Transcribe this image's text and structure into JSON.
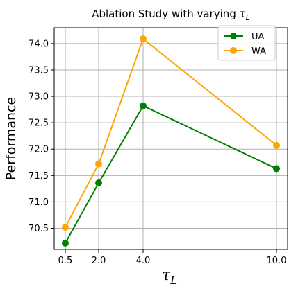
{
  "chart_data": {
    "type": "line",
    "title": "Ablation Study with varying τ",
    "title_subscript": "L",
    "xlabel": "τ",
    "xlabel_subscript": "L",
    "ylabel": "Performance",
    "x": [
      0.5,
      2.0,
      4.0,
      10.0
    ],
    "x_tick_labels": [
      "0.5",
      "2.0",
      "4.0",
      "10.0"
    ],
    "y_ticks": [
      70.5,
      71.0,
      71.5,
      72.0,
      72.5,
      73.0,
      73.5,
      74.0
    ],
    "y_tick_labels": [
      "70.5",
      "71.0",
      "71.5",
      "72.0",
      "72.5",
      "73.0",
      "73.5",
      "74.0"
    ],
    "xlim": [
      0.0,
      10.5
    ],
    "ylim": [
      70.1,
      74.3
    ],
    "grid": true,
    "legend_position": "top-right",
    "series": [
      {
        "name": "UA",
        "color": "#008000",
        "values": [
          70.22,
          71.36,
          72.82,
          71.63
        ]
      },
      {
        "name": "WA",
        "color": "#ffa500",
        "values": [
          70.52,
          71.72,
          74.09,
          72.07
        ]
      }
    ]
  }
}
